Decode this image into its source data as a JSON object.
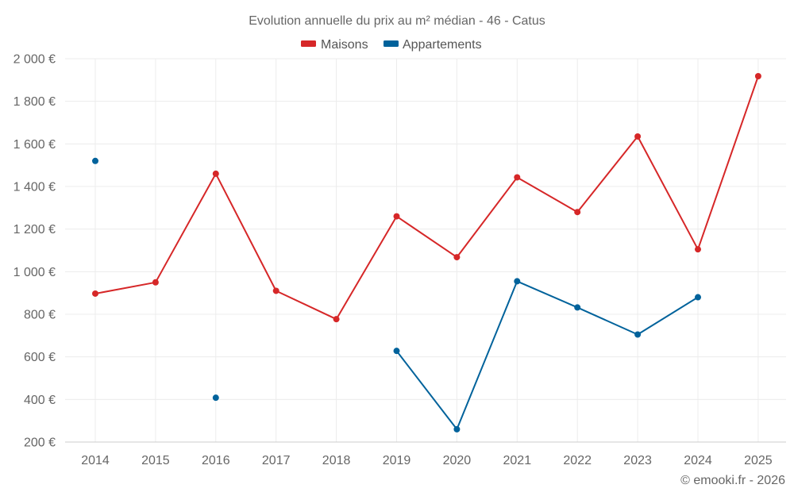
{
  "chart_data": {
    "type": "line",
    "title": "Evolution annuelle du prix au m² médian - 46 - Catus",
    "credit": "© emooki.fr - 2026",
    "categories": [
      "2014",
      "2015",
      "2016",
      "2017",
      "2018",
      "2019",
      "2020",
      "2021",
      "2022",
      "2023",
      "2024",
      "2025"
    ],
    "ylim": [
      200,
      2000
    ],
    "yticks": [
      200,
      400,
      600,
      800,
      1000,
      1200,
      1400,
      1600,
      1800,
      2000
    ],
    "ytick_labels": [
      "200 €",
      "400 €",
      "600 €",
      "800 €",
      "1 000 €",
      "1 200 €",
      "1 400 €",
      "1 600 €",
      "1 800 €",
      "2 000 €"
    ],
    "grid": true,
    "legend_position": "top-center",
    "series": [
      {
        "name": "Maisons",
        "color": "#d62728",
        "values": [
          897,
          950,
          1460,
          910,
          777,
          1260,
          1068,
          1443,
          1280,
          1635,
          1105,
          1918
        ]
      },
      {
        "name": "Appartements",
        "color": "#00629b",
        "values": [
          1520,
          null,
          408,
          null,
          null,
          628,
          260,
          955,
          832,
          705,
          880,
          null
        ]
      }
    ]
  }
}
